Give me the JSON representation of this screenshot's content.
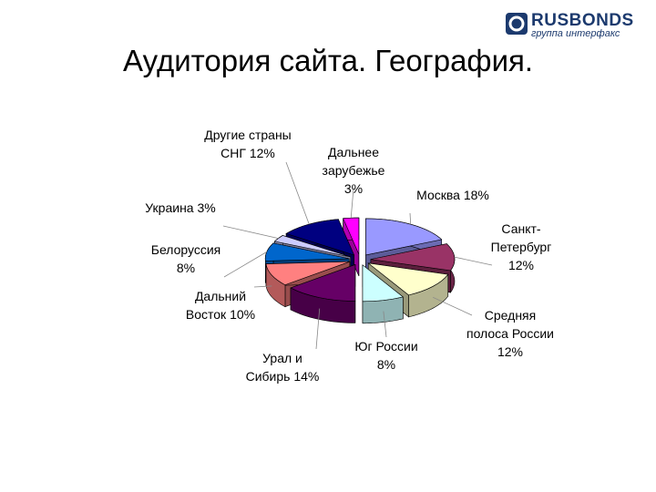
{
  "logo": {
    "brand": "RUSBONDS",
    "tagline": "группа интерфакс"
  },
  "chart_data": {
    "type": "pie",
    "title": "Аудитория сайта. География.",
    "categories": [
      "Москва",
      "Санкт-Петербург",
      "Средняя полоса России",
      "Юг России",
      "Урал и Сибирь",
      "Дальний Восток",
      "Белоруссия",
      "Украина",
      "Другие страны СНГ",
      "Дальнее зарубежье"
    ],
    "values": [
      18,
      12,
      12,
      8,
      14,
      10,
      8,
      3,
      12,
      3
    ],
    "value_labels": [
      "18%",
      "12%",
      "12%",
      "8%",
      "14%",
      "10%",
      "8%",
      "3%",
      "12%",
      "3%"
    ],
    "colors": [
      "#9999ff",
      "#993366",
      "#ffffcc",
      "#ccffff",
      "#660066",
      "#ff8080",
      "#0066cc",
      "#ccccff",
      "#000080",
      "#ff00ff"
    ]
  }
}
